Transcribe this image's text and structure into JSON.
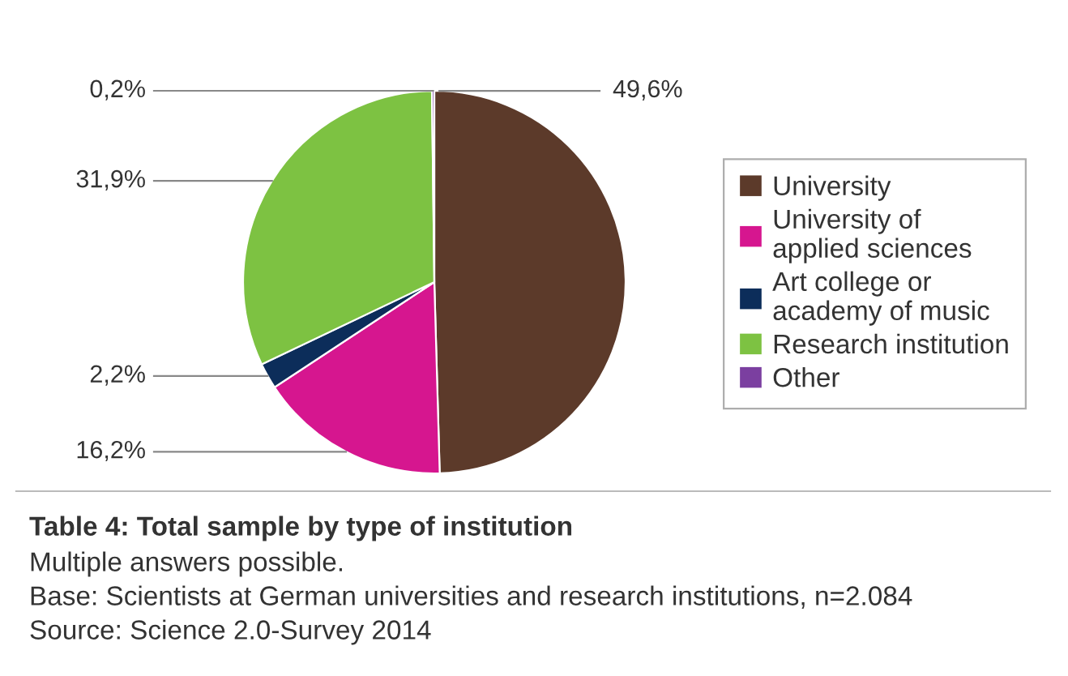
{
  "chart_data": {
    "type": "pie",
    "title": "Table 4: Total sample by type of institution",
    "categories": [
      "University",
      "University of\napplied sciences",
      "Art college or\nacademy of music",
      "Research institution",
      "Other"
    ],
    "values": [
      49.6,
      16.2,
      2.2,
      31.9,
      0.2
    ],
    "colors": [
      "#5c3a2a",
      "#d6168f",
      "#0c2d5a",
      "#7dc242",
      "#7b3fa0"
    ],
    "value_labels": [
      "49,6%",
      "16,2%",
      "2,2%",
      "31,9%",
      "0,2%"
    ],
    "legend": "right",
    "annotations": [
      "Multiple answers possible.",
      "Base: Scientists at German universities and research institutions, n=2.084",
      "Source: Science 2.0-Survey 2014"
    ]
  }
}
